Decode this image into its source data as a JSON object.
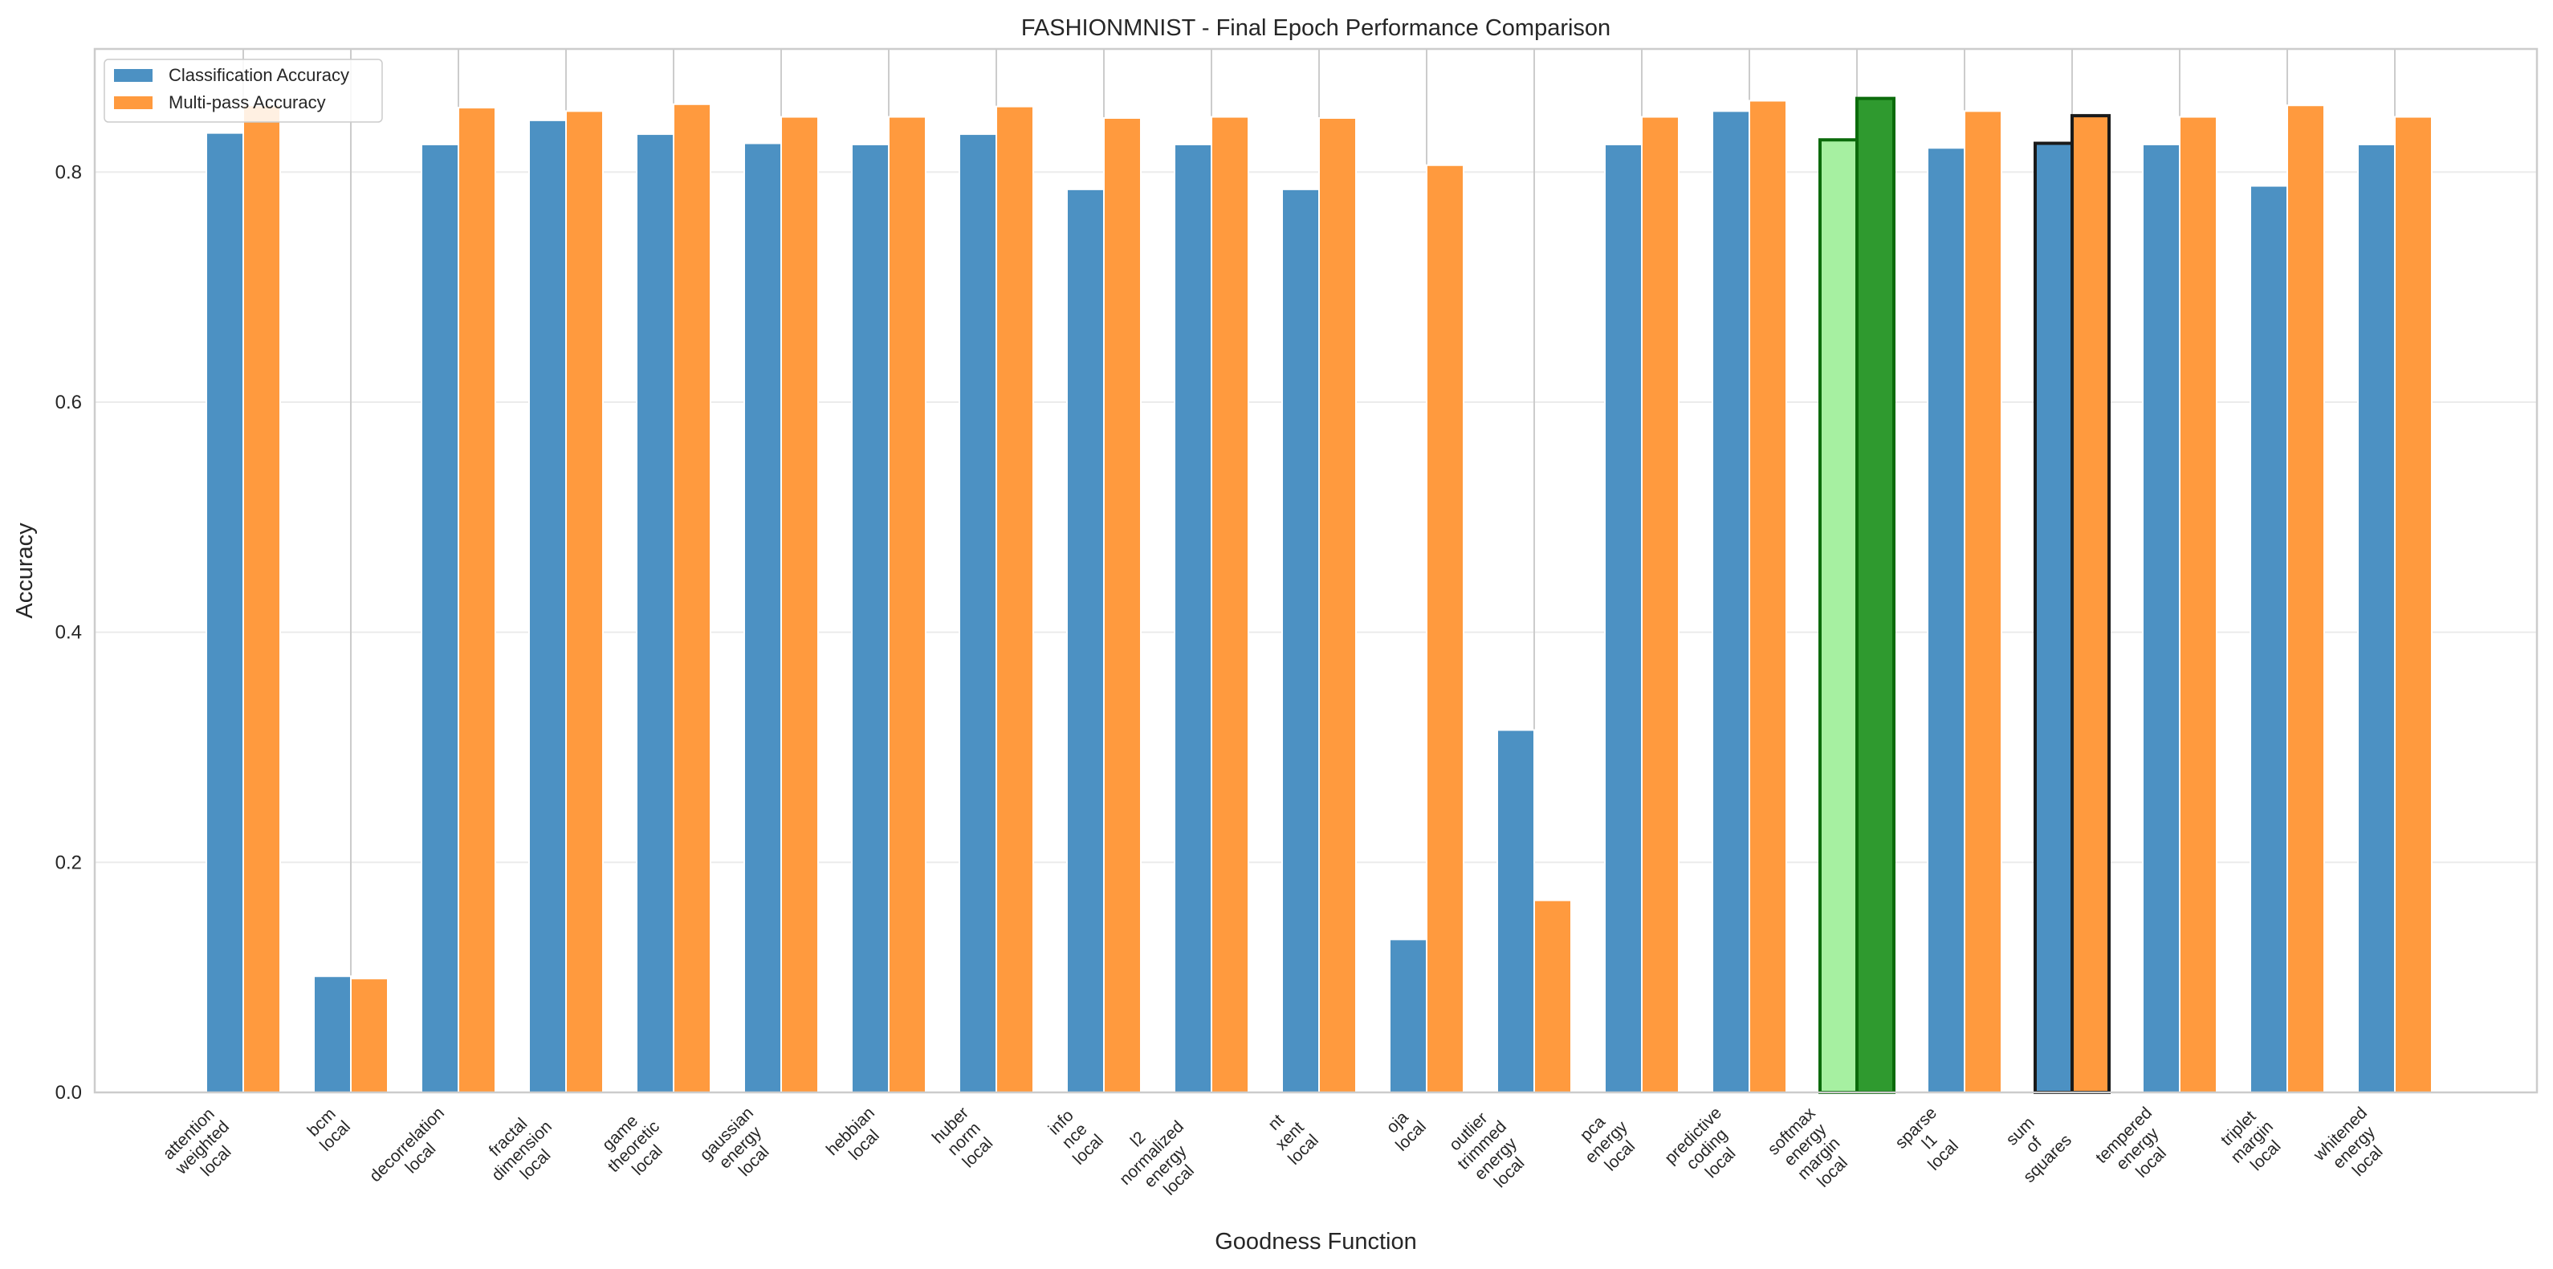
{
  "chart_data": {
    "type": "bar",
    "title": "FASHIONMNIST - Final Epoch Performance Comparison",
    "xlabel": "Goodness Function",
    "ylabel": "Accuracy",
    "ylim": [
      0,
      0.907
    ],
    "yticks": [
      "0.0",
      "0.2",
      "0.4",
      "0.6",
      "0.8"
    ],
    "grid": true,
    "legend_position": "top-left",
    "categories": [
      "attention\nweighted\nlocal",
      "bcm\nlocal",
      "decorrelation\nlocal",
      "fractal\ndimension\nlocal",
      "game\ntheoretic\nlocal",
      "gaussian\nenergy\nlocal",
      "hebbian\nlocal",
      "huber\nnorm\nlocal",
      "info\nnce\nlocal",
      "l2\nnormalized\nenergy\nlocal",
      "nt\nxent\nlocal",
      "oja\nlocal",
      "outlier\ntrimmed\nenergy\nlocal",
      "pca\nenergy\nlocal",
      "predictive\ncoding\nlocal",
      "softmax\nenergy\nmargin\nlocal",
      "sparse\nl1\nlocal",
      "sum\nof\nsquares",
      "tempered\nenergy\nlocal",
      "triplet\nmargin\nlocal",
      "whitened\nenergy\nlocal"
    ],
    "series": [
      {
        "name": "Classification Accuracy",
        "color": "#4c91c3",
        "values": [
          0.834,
          0.101,
          0.824,
          0.845,
          0.833,
          0.825,
          0.824,
          0.833,
          0.785,
          0.824,
          0.785,
          0.133,
          0.315,
          0.824,
          0.853,
          0.828,
          0.821,
          0.825,
          0.824,
          0.788,
          0.824
        ]
      },
      {
        "name": "Multi-pass Accuracy",
        "color": "#ff9a3e",
        "values": [
          0.858,
          0.099,
          0.856,
          0.853,
          0.859,
          0.848,
          0.848,
          0.857,
          0.847,
          0.848,
          0.847,
          0.806,
          0.167,
          0.848,
          0.862,
          0.864,
          0.853,
          0.849,
          0.848,
          0.858,
          0.848
        ]
      }
    ],
    "highlights": [
      {
        "category": "softmax\nenergy\nmargin\nlocal",
        "fills": [
          "#a6f0a1",
          "#2f9a2f"
        ],
        "edge": "#0b6b0b",
        "note_visible": false
      },
      {
        "category": "sum\nof\nsquares",
        "fills": [
          "#4c91c3",
          "#ff9a3e"
        ],
        "edge": "#1a1a1a",
        "note_visible": false
      }
    ]
  }
}
